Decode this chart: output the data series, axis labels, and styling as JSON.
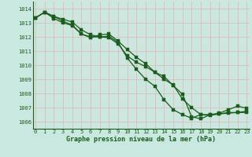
{
  "title": "Graphe pression niveau de la mer (hPa)",
  "background_color": "#c8e8e0",
  "grid_color_major": "#e8b8b8",
  "grid_color_minor": "#e8d8d8",
  "line_color": "#1a5c1a",
  "x_labels": [
    "0",
    "1",
    "2",
    "3",
    "4",
    "5",
    "6",
    "7",
    "8",
    "9",
    "10",
    "11",
    "12",
    "13",
    "14",
    "15",
    "16",
    "17",
    "18",
    "19",
    "20",
    "21",
    "22",
    "23"
  ],
  "ylim": [
    1005.5,
    1014.5
  ],
  "xlim": [
    -0.3,
    23.3
  ],
  "yticks": [
    1006,
    1007,
    1008,
    1009,
    1010,
    1011,
    1012,
    1013,
    1014
  ],
  "series": [
    [
      1013.35,
      1013.75,
      1013.45,
      1013.25,
      1013.05,
      1012.5,
      1012.15,
      1012.0,
      1011.95,
      1011.5,
      1010.65,
      1010.2,
      1009.9,
      1009.5,
      1009.0,
      1008.6,
      1007.6,
      1007.0,
      1006.5,
      1006.5,
      1006.55,
      1006.6,
      1006.65,
      1006.75
    ],
    [
      1013.35,
      1013.75,
      1013.45,
      1013.1,
      1012.85,
      1012.2,
      1012.0,
      1012.0,
      1012.05,
      1011.6,
      1010.5,
      1009.7,
      1009.0,
      1008.5,
      1007.55,
      1006.85,
      1006.5,
      1006.25,
      1006.5,
      1006.45,
      1006.55,
      1006.65,
      1006.65,
      1006.65
    ],
    [
      1013.35,
      1013.75,
      1013.3,
      1013.0,
      1012.8,
      1012.2,
      1011.95,
      1012.15,
      1012.2,
      1011.7,
      1011.1,
      1010.55,
      1010.1,
      1009.5,
      1009.2,
      1008.55,
      1007.95,
      1006.35,
      1006.2,
      1006.5,
      1006.6,
      1006.85,
      1007.1,
      1006.95
    ]
  ]
}
